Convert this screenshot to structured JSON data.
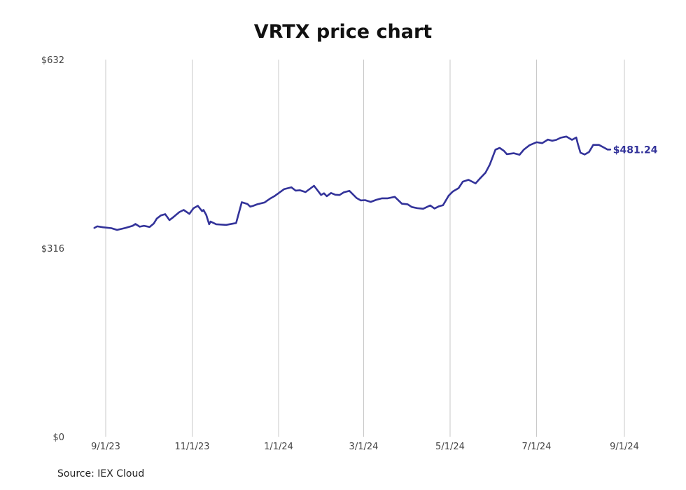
{
  "chart_data": {
    "type": "line",
    "title": "VRTX price chart",
    "source": "Source: IEX Cloud",
    "xlabel": "",
    "ylabel": "",
    "ylim": [
      0,
      632
    ],
    "xlim": [
      "2023-08-01",
      "2024-09-15"
    ],
    "y_ticks": [
      {
        "value": 632,
        "label": "$632"
      },
      {
        "value": 316,
        "label": "$316"
      },
      {
        "value": 0,
        "label": "$0"
      }
    ],
    "x_ticks": [
      {
        "value": "2023-09-01",
        "label": "9/1/23"
      },
      {
        "value": "2023-11-01",
        "label": "11/1/23"
      },
      {
        "value": "2024-01-01",
        "label": "1/1/24"
      },
      {
        "value": "2024-03-01",
        "label": "3/1/24"
      },
      {
        "value": "2024-05-01",
        "label": "5/1/24"
      },
      {
        "value": "2024-07-01",
        "label": "7/1/24"
      },
      {
        "value": "2024-09-01",
        "label": "9/1/24"
      }
    ],
    "grid": {
      "vertical": true,
      "horizontal": false
    },
    "end_label": "$481.24",
    "series": [
      {
        "color": "#33339a",
        "x": [
          "2023-08-24",
          "2023-08-26",
          "2023-08-30",
          "2023-09-05",
          "2023-09-09",
          "2023-09-15",
          "2023-09-20",
          "2023-09-22",
          "2023-09-25",
          "2023-09-28",
          "2023-10-02",
          "2023-10-05",
          "2023-10-07",
          "2023-10-10",
          "2023-10-13",
          "2023-10-16",
          "2023-10-19",
          "2023-10-23",
          "2023-10-26",
          "2023-10-30",
          "2023-11-02",
          "2023-11-05",
          "2023-11-08",
          "2023-11-09",
          "2023-11-11",
          "2023-11-13",
          "2023-11-14",
          "2023-11-18",
          "2023-11-25",
          "2023-12-02",
          "2023-12-06",
          "2023-12-10",
          "2023-12-12",
          "2023-12-14",
          "2023-12-17",
          "2023-12-22",
          "2023-12-26",
          "2023-12-29",
          "2024-01-05",
          "2024-01-10",
          "2024-01-13",
          "2024-01-16",
          "2024-01-20",
          "2024-01-26",
          "2024-01-31",
          "2024-02-02",
          "2024-02-04",
          "2024-02-07",
          "2024-02-10",
          "2024-02-13",
          "2024-02-16",
          "2024-02-20",
          "2024-02-25",
          "2024-02-28",
          "2024-03-02",
          "2024-03-06",
          "2024-03-10",
          "2024-03-14",
          "2024-03-18",
          "2024-03-23",
          "2024-03-28",
          "2024-04-01",
          "2024-04-04",
          "2024-04-08",
          "2024-04-12",
          "2024-04-17",
          "2024-04-20",
          "2024-04-23",
          "2024-04-26",
          "2024-04-30",
          "2024-05-03",
          "2024-05-07",
          "2024-05-10",
          "2024-05-14",
          "2024-05-19",
          "2024-05-22",
          "2024-05-26",
          "2024-05-29",
          "2024-06-02",
          "2024-06-05",
          "2024-06-08",
          "2024-06-10",
          "2024-06-15",
          "2024-06-19",
          "2024-06-22",
          "2024-06-26",
          "2024-07-01",
          "2024-07-05",
          "2024-07-09",
          "2024-07-12",
          "2024-07-15",
          "2024-07-18",
          "2024-07-22",
          "2024-07-26",
          "2024-07-29",
          "2024-07-30",
          "2024-08-01",
          "2024-08-04",
          "2024-08-07",
          "2024-08-10",
          "2024-08-14",
          "2024-08-18",
          "2024-08-20",
          "2024-08-22"
        ],
        "values": [
          350.0,
          352.5,
          351.0,
          349.5,
          346.5,
          350.0,
          353.5,
          356.5,
          352.0,
          353.5,
          351.5,
          357.5,
          365.5,
          371.0,
          373.0,
          363.0,
          368.5,
          376.5,
          380.0,
          373.5,
          383.0,
          387.0,
          378.0,
          380.0,
          371.5,
          356.0,
          360.5,
          356.0,
          355.0,
          358.0,
          393.0,
          390.0,
          385.5,
          387.0,
          389.5,
          392.5,
          399.0,
          403.0,
          415.0,
          418.0,
          412.5,
          413.0,
          410.0,
          420.5,
          405.0,
          408.0,
          403.0,
          408.5,
          405.5,
          405.0,
          409.5,
          412.0,
          400.0,
          396.0,
          396.5,
          393.5,
          397.0,
          399.5,
          399.5,
          402.0,
          390.5,
          389.5,
          385.0,
          383.0,
          382.0,
          387.5,
          382.5,
          386.0,
          388.0,
          404.0,
          411.0,
          416.5,
          427.5,
          430.5,
          424.5,
          432.5,
          442.5,
          456.0,
          481.0,
          484.0,
          479.0,
          473.5,
          475.0,
          472.5,
          481.0,
          488.5,
          493.5,
          492.0,
          498.0,
          496.0,
          497.5,
          501.0,
          503.0,
          497.5,
          501.5,
          492.0,
          476.0,
          473.0,
          477.0,
          489.0,
          489.0,
          484.0,
          481.24,
          481.24
        ]
      }
    ]
  }
}
